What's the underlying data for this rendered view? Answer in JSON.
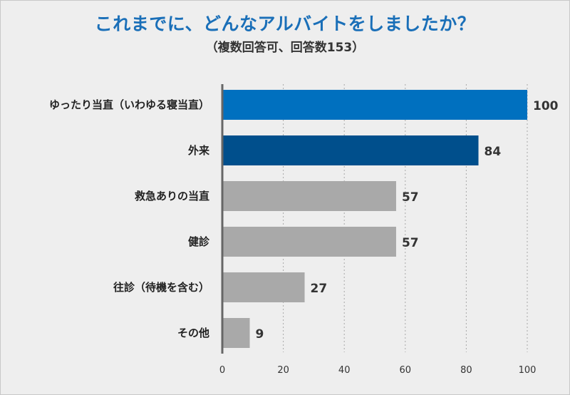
{
  "chart_data": {
    "type": "bar",
    "orientation": "horizontal",
    "title": "これまでに、どんなアルバイトをしましたか？",
    "subtitle": "（複数回答可、回答数153）",
    "categories": [
      "ゆったり当直（いわゆる寝当直）",
      "外来",
      "救急ありの当直",
      "健診",
      "往診（待機を含む）",
      "その他"
    ],
    "values": [
      100,
      84,
      57,
      57,
      27,
      9
    ],
    "bar_colors": [
      "#0070bf",
      "#004f8c",
      "#a9a9a9",
      "#a9a9a9",
      "#a9a9a9",
      "#a9a9a9"
    ],
    "xlim": [
      0,
      100
    ],
    "xticks": [
      0,
      20,
      40,
      60,
      80,
      100
    ],
    "grid": true,
    "xlabel": "",
    "ylabel": ""
  }
}
